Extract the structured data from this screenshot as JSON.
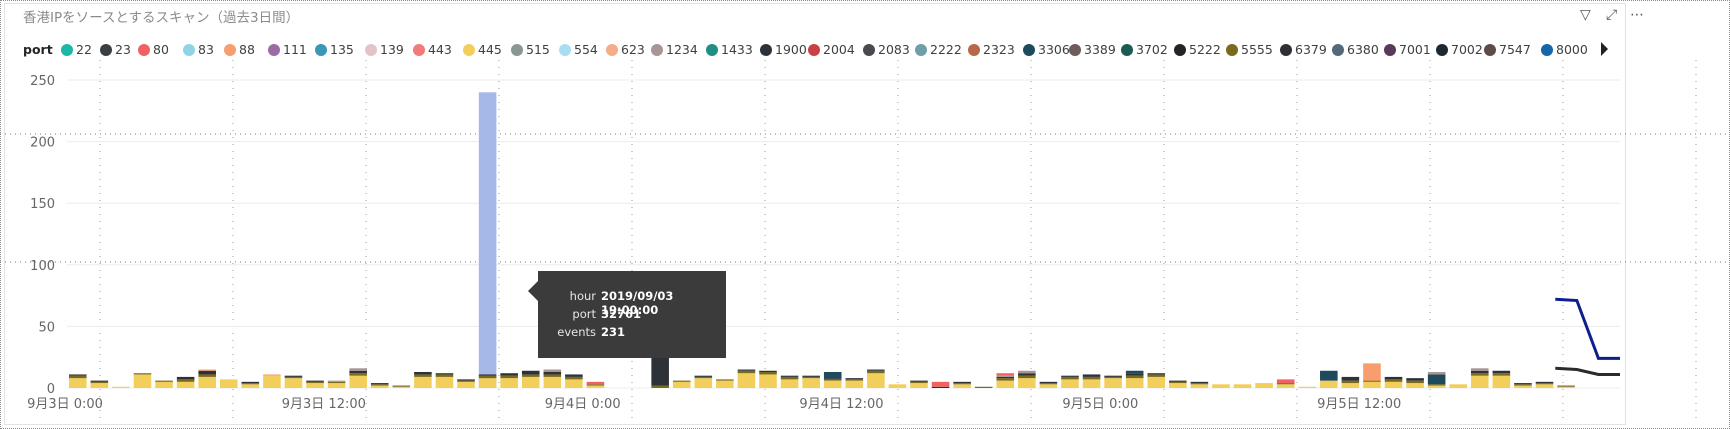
{
  "visual": {
    "title": "香港IPをソースとするスキャン（過去3日間）",
    "header_icons": [
      {
        "name": "filter-icon",
        "glyph": "▽"
      },
      {
        "name": "focus-mode-icon",
        "glyph": "⤢"
      },
      {
        "name": "more-options-icon",
        "glyph": "⋯"
      }
    ]
  },
  "legend": {
    "title": "port",
    "items": [
      {
        "label": "22",
        "color": "#1ab8a7"
      },
      {
        "label": "23",
        "color": "#3a3f44"
      },
      {
        "label": "80",
        "color": "#f06262"
      },
      {
        "label": "83",
        "color": "#8fd3e8"
      },
      {
        "label": "88",
        "color": "#f79d6e"
      },
      {
        "label": "111",
        "color": "#9d6aa8"
      },
      {
        "label": "135",
        "color": "#3a97b5"
      },
      {
        "label": "139",
        "color": "#e3c3c7"
      },
      {
        "label": "443",
        "color": "#f27a7a"
      },
      {
        "label": "445",
        "color": "#f2cf5b"
      },
      {
        "label": "515",
        "color": "#8a9690"
      },
      {
        "label": "554",
        "color": "#a9def2"
      },
      {
        "label": "623",
        "color": "#f5ad86"
      },
      {
        "label": "1234",
        "color": "#a89596"
      },
      {
        "label": "1433",
        "color": "#1f8f86"
      },
      {
        "label": "1900",
        "color": "#2d3238"
      },
      {
        "label": "2004",
        "color": "#c94242"
      },
      {
        "label": "2083",
        "color": "#484a4f"
      },
      {
        "label": "2222",
        "color": "#6e9ea8"
      },
      {
        "label": "2323",
        "color": "#b86848"
      },
      {
        "label": "3306",
        "color": "#1f4a5c"
      },
      {
        "label": "3389",
        "color": "#6e5c5c"
      },
      {
        "label": "3702",
        "color": "#1a5c52"
      },
      {
        "label": "5222",
        "color": "#222428"
      },
      {
        "label": "5555",
        "color": "#7a6a1e"
      },
      {
        "label": "6379",
        "color": "#2e3034"
      },
      {
        "label": "6380",
        "color": "#536878"
      },
      {
        "label": "7001",
        "color": "#5a3a5a"
      },
      {
        "label": "7002",
        "color": "#1e2833"
      },
      {
        "label": "7547",
        "color": "#5c4c48"
      },
      {
        "label": "8000",
        "color": "#1466a8"
      }
    ]
  },
  "tooltip": {
    "rows": [
      {
        "key": "hour",
        "value": "2019/09/03 19:00:00"
      },
      {
        "key": "port",
        "value": "32761"
      },
      {
        "key": "events",
        "value": "231"
      }
    ]
  },
  "chart_data": {
    "type": "bar",
    "stacked": true,
    "x_unit": "hour",
    "x_start": "2019-09-03T00:00",
    "x_end": "2019-09-06T00:00",
    "x_tick_labels": [
      "9月3日 0:00",
      "9月3日 12:00",
      "9月4日 0:00",
      "9月4日 12:00",
      "9月5日 0:00",
      "9月5日 12:00"
    ],
    "ylim": [
      0,
      250
    ],
    "y_ticks": [
      0,
      50,
      100,
      150,
      200,
      250
    ],
    "grid": {
      "horizontal": true,
      "vertical": false
    },
    "legend_position": "top-left",
    "highlighted_bar": {
      "hour": "2019-09-03T19:00",
      "port": "32761",
      "value": 231,
      "color": "#a6b8e8"
    },
    "stack_colors": [
      "#f2cf5b",
      "#7a6a1e",
      "#2d3238",
      "#f79d6e",
      "#1f4a5c",
      "#a89596",
      "#f06262"
    ],
    "bars": [
      {
        "hour": 0,
        "segments": [
          8,
          2,
          1
        ]
      },
      {
        "hour": 1,
        "segments": [
          4,
          1,
          1
        ]
      },
      {
        "hour": 2,
        "segments": [
          1,
          0,
          0
        ]
      },
      {
        "hour": 3,
        "segments": [
          11,
          1,
          0
        ]
      },
      {
        "hour": 4,
        "segments": [
          5,
          1,
          0
        ]
      },
      {
        "hour": 5,
        "segments": [
          5,
          2,
          2
        ]
      },
      {
        "hour": 6,
        "segments": [
          9,
          2,
          3,
          1
        ]
      },
      {
        "hour": 7,
        "segments": [
          7,
          0,
          0
        ]
      },
      {
        "hour": 8,
        "segments": [
          3,
          1,
          1
        ]
      },
      {
        "hour": 9,
        "segments": [
          10,
          0,
          0,
          1
        ]
      },
      {
        "hour": 10,
        "segments": [
          8,
          1,
          1
        ]
      },
      {
        "hour": 11,
        "segments": [
          4,
          1,
          1
        ]
      },
      {
        "hour": 12,
        "segments": [
          4,
          1,
          0,
          0,
          0,
          1
        ]
      },
      {
        "hour": 13,
        "segments": [
          10,
          2,
          2,
          0,
          0,
          2
        ]
      },
      {
        "hour": 14,
        "segments": [
          2,
          1,
          1
        ]
      },
      {
        "hour": 15,
        "segments": [
          1,
          1,
          0
        ]
      },
      {
        "hour": 16,
        "segments": [
          9,
          2,
          2
        ]
      },
      {
        "hour": 17,
        "segments": [
          9,
          2,
          1
        ]
      },
      {
        "hour": 18,
        "segments": [
          5,
          1,
          1
        ]
      },
      {
        "hour": 19,
        "segments": [
          8,
          2,
          1
        ]
      },
      {
        "hour": 20,
        "segments": [
          8,
          2,
          2
        ]
      },
      {
        "hour": 21,
        "segments": [
          9,
          2,
          3
        ]
      },
      {
        "hour": 22,
        "segments": [
          9,
          2,
          2,
          0,
          0,
          2
        ]
      },
      {
        "hour": 23,
        "segments": [
          7,
          2,
          2
        ]
      },
      {
        "hour": 24,
        "segments": [
          2,
          1,
          0,
          0,
          0,
          0,
          2
        ]
      },
      {
        "hour": 27,
        "segments": [
          0,
          2,
          49
        ]
      },
      {
        "hour": 28,
        "segments": [
          5,
          1,
          0
        ]
      },
      {
        "hour": 29,
        "segments": [
          8,
          1,
          1
        ]
      },
      {
        "hour": 30,
        "segments": [
          6,
          1,
          0
        ]
      },
      {
        "hour": 31,
        "segments": [
          12,
          2,
          1
        ]
      },
      {
        "hour": 32,
        "segments": [
          11,
          2,
          1
        ]
      },
      {
        "hour": 33,
        "segments": [
          7,
          2,
          1
        ]
      },
      {
        "hour": 34,
        "segments": [
          8,
          1,
          1
        ]
      },
      {
        "hour": 35,
        "segments": [
          6,
          1,
          1,
          0,
          5
        ]
      },
      {
        "hour": 36,
        "segments": [
          6,
          1,
          1
        ]
      },
      {
        "hour": 37,
        "segments": [
          12,
          2,
          1
        ]
      },
      {
        "hour": 38,
        "segments": [
          3,
          0,
          0
        ]
      },
      {
        "hour": 39,
        "segments": [
          4,
          1,
          1
        ]
      },
      {
        "hour": 40,
        "segments": [
          0,
          0,
          1,
          0,
          0,
          0,
          4
        ]
      },
      {
        "hour": 41,
        "segments": [
          3,
          1,
          1
        ]
      },
      {
        "hour": 42,
        "segments": [
          0,
          1,
          0
        ]
      },
      {
        "hour": 43,
        "segments": [
          6,
          2,
          1,
          0,
          0,
          1,
          2
        ]
      },
      {
        "hour": 44,
        "segments": [
          8,
          2,
          2,
          0,
          0,
          2
        ]
      },
      {
        "hour": 45,
        "segments": [
          3,
          1,
          1
        ]
      },
      {
        "hour": 46,
        "segments": [
          7,
          2,
          1
        ]
      },
      {
        "hour": 47,
        "segments": [
          7,
          2,
          2
        ]
      },
      {
        "hour": 48,
        "segments": [
          8,
          1,
          1
        ]
      },
      {
        "hour": 49,
        "segments": [
          8,
          2,
          2,
          0,
          2
        ]
      },
      {
        "hour": 50,
        "segments": [
          9,
          2,
          1
        ]
      },
      {
        "hour": 51,
        "segments": [
          4,
          1,
          1
        ]
      },
      {
        "hour": 52,
        "segments": [
          3,
          1,
          1
        ]
      },
      {
        "hour": 53,
        "segments": [
          3,
          0,
          0
        ]
      },
      {
        "hour": 54,
        "segments": [
          3,
          0,
          0
        ]
      },
      {
        "hour": 55,
        "segments": [
          4,
          0,
          0
        ]
      },
      {
        "hour": 56,
        "segments": [
          3,
          1,
          0,
          0,
          0,
          0,
          3
        ]
      },
      {
        "hour": 57,
        "segments": [
          1,
          0,
          0
        ]
      },
      {
        "hour": 58,
        "segments": [
          6,
          0,
          0,
          0,
          8
        ]
      },
      {
        "hour": 59,
        "segments": [
          4,
          2,
          3
        ]
      },
      {
        "hour": 60,
        "segments": [
          5,
          1,
          0,
          14
        ]
      },
      {
        "hour": 61,
        "segments": [
          5,
          2,
          2
        ]
      },
      {
        "hour": 62,
        "segments": [
          4,
          2,
          2
        ]
      },
      {
        "hour": 63,
        "segments": [
          2,
          1,
          0,
          0,
          8,
          2
        ]
      },
      {
        "hour": 64,
        "segments": [
          3,
          0,
          0
        ]
      },
      {
        "hour": 65,
        "segments": [
          10,
          2,
          2,
          0,
          0,
          2
        ]
      },
      {
        "hour": 66,
        "segments": [
          10,
          2,
          2
        ]
      },
      {
        "hour": 67,
        "segments": [
          2,
          1,
          1
        ]
      },
      {
        "hour": 68,
        "segments": [
          3,
          1,
          1
        ]
      },
      {
        "hour": 69,
        "segments": [
          1,
          1,
          0
        ]
      }
    ],
    "line_series": [
      {
        "color": "#0d1f8c",
        "points": [
          {
            "hour": 69,
            "value": 72
          },
          {
            "hour": 70,
            "value": 71
          },
          {
            "hour": 71,
            "value": 24
          },
          {
            "hour": 72,
            "value": 24
          }
        ]
      },
      {
        "color": "#2b2b2b",
        "points": [
          {
            "hour": 69,
            "value": 16
          },
          {
            "hour": 70,
            "value": 15
          },
          {
            "hour": 71,
            "value": 11
          },
          {
            "hour": 72,
            "value": 11
          }
        ]
      }
    ]
  }
}
